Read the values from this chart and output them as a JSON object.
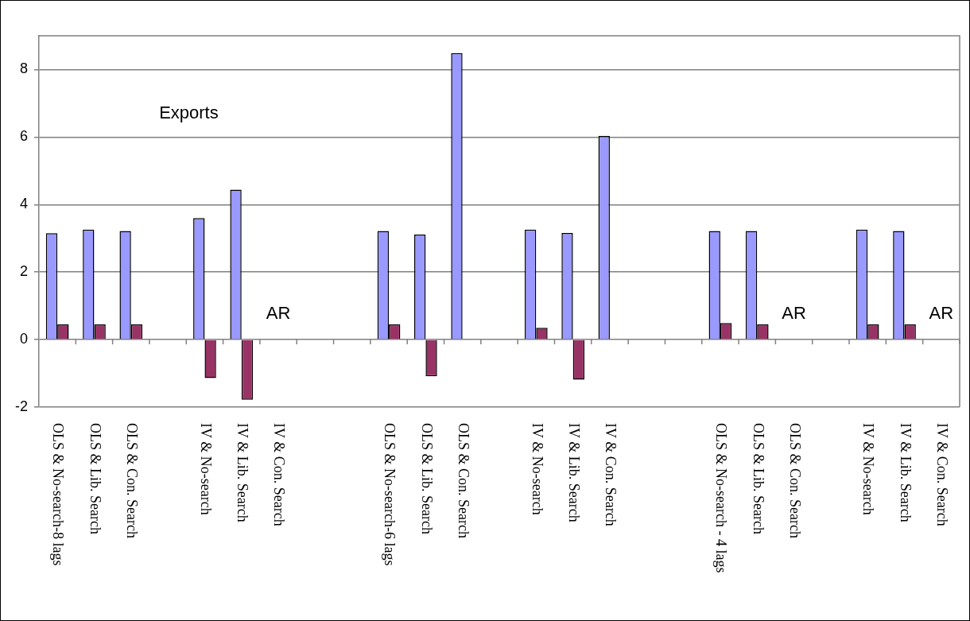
{
  "chart_data": {
    "type": "bar",
    "title": "Exports",
    "categories": [
      "OLS & No-search-8 lags",
      "OLS & Lib. Search",
      "OLS & Con. Search",
      null,
      "IV & No-search",
      "IV & Lib. Search",
      "IV & Con. Search",
      null,
      null,
      "OLS & No-search-6 lags",
      "OLS & Lib. Search",
      "OLS & Con. Search",
      null,
      "IV & No-search",
      "IV & Lib. Search",
      "IV & Con. Search",
      null,
      null,
      "OLS & No-search - 4 lags",
      "OLS & Lib. Search",
      "OLS & Con. Search",
      null,
      "IV & No-search",
      "IV & Lib. Search",
      "IV & Con. Search"
    ],
    "series": [
      {
        "color": "#9999ff",
        "values": [
          3.15,
          3.26,
          3.22,
          null,
          3.6,
          4.44,
          null,
          null,
          null,
          3.22,
          3.11,
          8.49,
          null,
          3.26,
          3.16,
          6.03,
          null,
          null,
          3.22,
          3.22,
          null,
          null,
          3.26,
          3.22,
          null
        ]
      },
      {
        "color": "#993366",
        "values": [
          0.45,
          0.45,
          0.45,
          null,
          -1.14,
          -1.78,
          null,
          null,
          null,
          0.45,
          -1.09,
          null,
          null,
          0.35,
          -1.19,
          null,
          null,
          null,
          0.49,
          0.45,
          null,
          null,
          0.45,
          0.45,
          null
        ]
      }
    ],
    "ylim": [
      -2,
      9
    ],
    "yticks": [
      -2,
      0,
      2,
      4,
      6,
      8
    ],
    "grid": "y",
    "annotations": [
      "AR",
      "AR",
      "AR"
    ]
  }
}
